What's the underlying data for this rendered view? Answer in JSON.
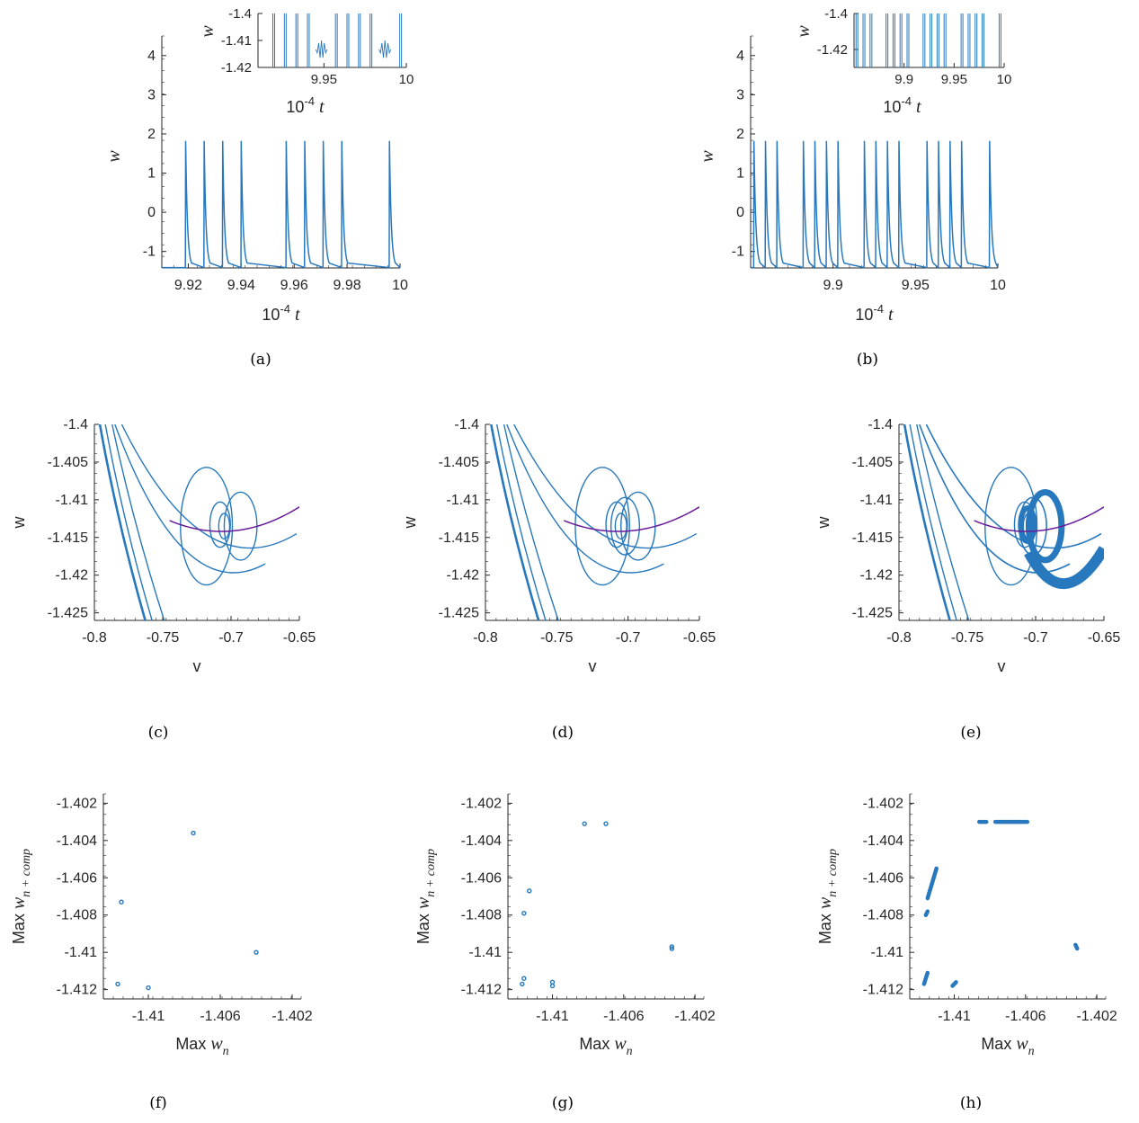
{
  "colors": {
    "trace": "#2878bd",
    "nullcline": "#6a1b9a",
    "axis": "#262626"
  },
  "chart_data": [
    {
      "id": "a",
      "type": "line",
      "caption": "(a)",
      "xlabel": "10",
      "xlabel_sup": "-4",
      "xlabel_var": "t",
      "ylabel": "w",
      "xlim": [
        9.91,
        10.0
      ],
      "ylim": [
        -1.42,
        4.5
      ],
      "xticks": [
        "9.92",
        "9.94",
        "9.96",
        "9.98",
        "10"
      ],
      "yticks": [
        "-1",
        "0",
        "1",
        "2",
        "3",
        "4"
      ],
      "spike_times": [
        9.919,
        9.926,
        9.933,
        9.94,
        9.957,
        9.964,
        9.971,
        9.978,
        9.996
      ],
      "spike_peak": 1.82,
      "baseline": -1.41,
      "inset": {
        "xlim": [
          9.91,
          10.0
        ],
        "ylim": [
          -1.42,
          -1.4
        ],
        "xticks": [
          "9.95",
          "10"
        ],
        "yticks": [
          "-1.4",
          "-1.41",
          "-1.42"
        ],
        "xlabel": "10",
        "xlabel_sup": "-4",
        "xlabel_var": "t",
        "ylabel": "w"
      }
    },
    {
      "id": "b",
      "type": "line",
      "caption": "(b)",
      "xlabel": "10",
      "xlabel_sup": "-4",
      "xlabel_var": "t",
      "ylabel": "w",
      "xlim": [
        9.85,
        10.0
      ],
      "ylim": [
        -1.42,
        4.5
      ],
      "xticks": [
        "9.9",
        "9.95",
        "10"
      ],
      "yticks": [
        "-1",
        "0",
        "1",
        "2",
        "3",
        "4"
      ],
      "spike_times": [
        9.852,
        9.859,
        9.866,
        9.882,
        9.889,
        9.896,
        9.903,
        9.919,
        9.926,
        9.933,
        9.94,
        9.957,
        9.964,
        9.971,
        9.978,
        9.995
      ],
      "spike_peak": 1.82,
      "baseline": -1.41,
      "inset": {
        "xlim": [
          9.85,
          10.0
        ],
        "ylim": [
          -1.43,
          -1.4
        ],
        "xticks": [
          "9.9",
          "9.95",
          "10"
        ],
        "yticks": [
          "-1.4",
          "-1.42"
        ],
        "xlabel": "10",
        "xlabel_sup": "-4",
        "xlabel_var": "t",
        "ylabel": "w"
      }
    },
    {
      "id": "c",
      "type": "line",
      "caption": "(c)",
      "xlabel": "v",
      "ylabel": "w",
      "xlim": [
        -0.8,
        -0.65
      ],
      "ylim": [
        -1.426,
        -1.4
      ],
      "xticks": [
        "-0.8",
        "-0.75",
        "-0.7",
        "-0.65"
      ],
      "yticks": [
        "-1.4",
        "-1.405",
        "-1.41",
        "-1.415",
        "-1.42",
        "-1.425"
      ],
      "nullcline_vertex": [
        -0.707,
        -1.4142
      ],
      "nullcline_curvature": 1.0,
      "thick": false
    },
    {
      "id": "d",
      "type": "line",
      "caption": "(d)",
      "xlabel": "v",
      "ylabel": "w",
      "xlim": [
        -0.8,
        -0.65
      ],
      "ylim": [
        -1.426,
        -1.4
      ],
      "xticks": [
        "-0.8",
        "-0.75",
        "-0.7",
        "-0.65"
      ],
      "yticks": [
        "-1.4",
        "-1.405",
        "-1.41",
        "-1.415",
        "-1.42",
        "-1.425"
      ],
      "nullcline_vertex": [
        -0.707,
        -1.4142
      ],
      "nullcline_curvature": 1.0,
      "thick": false
    },
    {
      "id": "e",
      "type": "line",
      "caption": "(e)",
      "xlabel": "v",
      "ylabel": "w",
      "xlim": [
        -0.8,
        -0.65
      ],
      "ylim": [
        -1.426,
        -1.4
      ],
      "xticks": [
        "-0.8",
        "-0.75",
        "-0.7",
        "-0.65"
      ],
      "yticks": [
        "-1.4",
        "-1.405",
        "-1.41",
        "-1.415",
        "-1.42",
        "-1.425"
      ],
      "nullcline_vertex": [
        -0.707,
        -1.4142
      ],
      "nullcline_curvature": 1.0,
      "thick": true
    },
    {
      "id": "f",
      "type": "scatter",
      "caption": "(f)",
      "xlabel": "Max w",
      "xlabel_sub": "n",
      "ylabel": "Max w",
      "ylabel_sub": "n + comp",
      "xlim": [
        -1.4125,
        -1.4015
      ],
      "ylim": [
        -1.4125,
        -1.4015
      ],
      "xticks": [
        "-1.41",
        "-1.406",
        "-1.402"
      ],
      "yticks": [
        "-1.402",
        "-1.404",
        "-1.406",
        "-1.408",
        "-1.41",
        "-1.412"
      ],
      "points": [
        [
          -1.4117,
          -1.4117
        ],
        [
          -1.4115,
          -1.4073
        ],
        [
          -1.41,
          -1.4119
        ],
        [
          -1.4075,
          -1.4036
        ],
        [
          -1.404,
          -1.41
        ]
      ]
    },
    {
      "id": "g",
      "type": "scatter",
      "caption": "(g)",
      "xlabel": "Max w",
      "xlabel_sub": "n",
      "ylabel": "Max w",
      "ylabel_sub": "n + comp",
      "xlim": [
        -1.4125,
        -1.4015
      ],
      "ylim": [
        -1.4125,
        -1.4015
      ],
      "xticks": [
        "-1.41",
        "-1.406",
        "-1.402"
      ],
      "yticks": [
        "-1.402",
        "-1.404",
        "-1.406",
        "-1.408",
        "-1.41",
        "-1.412"
      ],
      "points": [
        [
          -1.4117,
          -1.4117
        ],
        [
          -1.4116,
          -1.4114
        ],
        [
          -1.4116,
          -1.4079
        ],
        [
          -1.4113,
          -1.4067
        ],
        [
          -1.41,
          -1.4118
        ],
        [
          -1.41,
          -1.4116
        ],
        [
          -1.4082,
          -1.4031
        ],
        [
          -1.407,
          -1.4031
        ],
        [
          -1.4033,
          -1.4097
        ],
        [
          -1.4033,
          -1.4098
        ]
      ]
    },
    {
      "id": "h",
      "type": "scatter",
      "caption": "(h)",
      "xlabel": "Max w",
      "xlabel_sub": "n",
      "ylabel": "Max w",
      "ylabel_sub": "n + comp",
      "xlim": [
        -1.4125,
        -1.4015
      ],
      "ylim": [
        -1.4125,
        -1.4015
      ],
      "xticks": [
        "-1.41",
        "-1.406",
        "-1.402"
      ],
      "yticks": [
        "-1.402",
        "-1.404",
        "-1.406",
        "-1.408",
        "-1.41",
        "-1.412"
      ],
      "segments": [
        [
          [
            -1.4117,
            -1.4117
          ],
          [
            -1.4115,
            -1.4111
          ]
        ],
        [
          [
            -1.4116,
            -1.408
          ],
          [
            -1.4115,
            -1.4078
          ]
        ],
        [
          [
            -1.4115,
            -1.4071
          ],
          [
            -1.411,
            -1.4055
          ]
        ],
        [
          [
            -1.4101,
            -1.4118
          ],
          [
            -1.4099,
            -1.4116
          ]
        ],
        [
          [
            -1.4086,
            -1.403
          ],
          [
            -1.4082,
            -1.403
          ]
        ],
        [
          [
            -1.4077,
            -1.403
          ],
          [
            -1.4059,
            -1.403
          ]
        ],
        [
          [
            -1.4032,
            -1.4096
          ],
          [
            -1.4031,
            -1.4098
          ]
        ]
      ]
    }
  ]
}
